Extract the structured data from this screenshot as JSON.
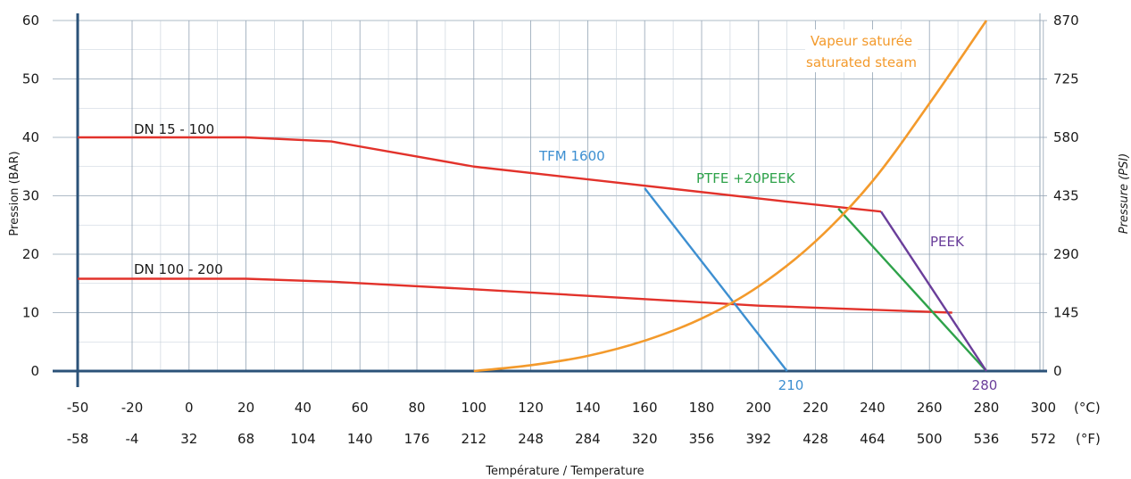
{
  "chart_data": {
    "type": "line",
    "title": "",
    "xlabel": "Température / Temperature",
    "ylabel_left": "Pression (BAR)",
    "ylabel_right": "Pressure (PSI)",
    "x_unit_c": "(°C)",
    "x_unit_f": "(°F)",
    "x_ticks_c": [
      "-50",
      "-20",
      "0",
      "20",
      "40",
      "60",
      "80",
      "100",
      "120",
      "140",
      "160",
      "180",
      "200",
      "220",
      "240",
      "260",
      "280",
      "300"
    ],
    "x_ticks_f": [
      "-58",
      "-4",
      "32",
      "68",
      "104",
      "140",
      "176",
      "212",
      "248",
      "284",
      "320",
      "356",
      "392",
      "428",
      "464",
      "500",
      "536",
      "572"
    ],
    "y_ticks_bar": [
      "0",
      "10",
      "20",
      "30",
      "40",
      "50",
      "60"
    ],
    "y_ticks_psi": [
      "0",
      "145",
      "290",
      "435",
      "580",
      "725",
      "870"
    ],
    "ylim": [
      0,
      60
    ],
    "grid": true,
    "series": [
      {
        "name": "DN 15 - 100",
        "color": "#e2322b",
        "x": [
          -50,
          20,
          50,
          100,
          210,
          243
        ],
        "y": [
          40,
          40,
          39.3,
          35,
          29,
          27.3
        ]
      },
      {
        "name": "DN 100 - 200",
        "color": "#e2322b",
        "x": [
          -50,
          20,
          50,
          100,
          200,
          268
        ],
        "y": [
          15.8,
          15.8,
          15.3,
          14,
          11.2,
          10
        ]
      },
      {
        "name": "TFM 1600",
        "color": "#3d8fd1",
        "x": [
          160,
          210
        ],
        "y": [
          31.3,
          0
        ]
      },
      {
        "name": "PTFE +20PEEK",
        "color": "#2ea24a",
        "x": [
          228,
          280
        ],
        "y": [
          27.8,
          0
        ]
      },
      {
        "name": "PEEK",
        "color": "#6a3e9a",
        "x": [
          243,
          280
        ],
        "y": [
          27.3,
          0
        ]
      },
      {
        "name": "Vapeur saturée / saturated steam",
        "color": "#f39a2c",
        "x": [
          100,
          120,
          140,
          160,
          180,
          200,
          220,
          240,
          260,
          280
        ],
        "y": [
          0,
          1,
          2.6,
          5.2,
          9,
          14.5,
          22.2,
          32.5,
          45.8,
          60
        ]
      }
    ],
    "annotations": {
      "dn15": "DN 15 - 100",
      "dn100": "DN 100 - 200",
      "tfm": "TFM 1600",
      "ptfe": "PTFE +20PEEK",
      "peek": "PEEK",
      "steam_line1": "Vapeur saturée",
      "steam_line2": "saturated steam",
      "end_tfm": "210",
      "end_peek": "280"
    }
  }
}
